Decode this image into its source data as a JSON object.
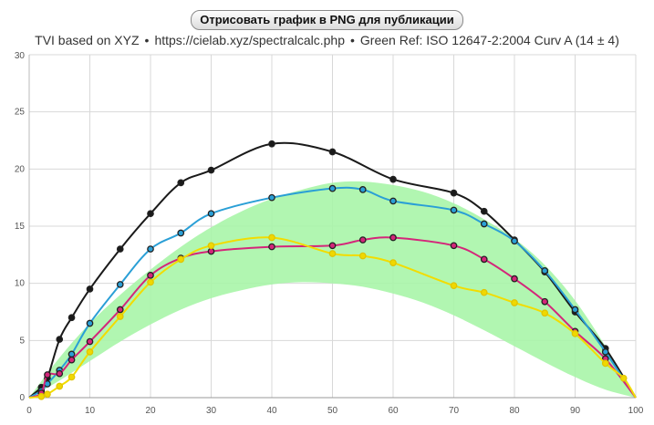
{
  "button": {
    "label": "Отрисовать график в PNG для публикации"
  },
  "subtitle": {
    "part1": "TVI based on XYZ",
    "separator": "•",
    "part2": "https://cielab.xyz/spectralcalc.php",
    "part3": "Green Ref: ISO 12647-2:2004 Curv A (14 ± 4)"
  },
  "chart_data": {
    "type": "line",
    "title": "TVI based on XYZ",
    "xlim": [
      0,
      100
    ],
    "ylim": [
      0,
      30
    ],
    "x_ticks": [
      0,
      10,
      20,
      30,
      40,
      50,
      60,
      70,
      80,
      90,
      100
    ],
    "y_ticks": [
      0,
      5,
      10,
      15,
      20,
      25,
      30
    ],
    "grid": true,
    "band": {
      "name": "Green Ref: ISO 12647-2:2004 Curv A (14 ± 4)",
      "color": "#a8f5a8",
      "x": [
        0,
        5,
        10,
        15,
        20,
        25,
        30,
        35,
        40,
        45,
        50,
        55,
        60,
        65,
        70,
        75,
        80,
        85,
        90,
        95,
        100
      ],
      "lower": [
        0,
        1.5,
        3.2,
        4.9,
        6.4,
        7.7,
        8.7,
        9.4,
        9.9,
        10.1,
        10.0,
        9.7,
        9.1,
        8.3,
        7.2,
        5.9,
        4.5,
        3.1,
        1.8,
        0.7,
        0
      ],
      "upper": [
        0,
        3.5,
        6.5,
        9.0,
        11.2,
        13.2,
        14.9,
        16.3,
        17.4,
        18.2,
        18.8,
        18.9,
        18.6,
        18.0,
        17.0,
        15.6,
        13.9,
        11.6,
        8.5,
        4.5,
        0
      ]
    },
    "series": [
      {
        "name": "black",
        "color": "#1a1a1a",
        "x": [
          0,
          2,
          3,
          5,
          7,
          10,
          15,
          20,
          25,
          30,
          40,
          50,
          60,
          70,
          75,
          80,
          85,
          90,
          95,
          100
        ],
        "y": [
          0,
          0.9,
          1.7,
          5.1,
          7.0,
          9.5,
          13.0,
          16.1,
          18.8,
          19.9,
          22.2,
          21.5,
          19.1,
          17.9,
          16.3,
          13.8,
          11.0,
          7.5,
          4.3,
          0
        ]
      },
      {
        "name": "cyan",
        "color": "#2a9fd6",
        "x": [
          0,
          2,
          3,
          5,
          7,
          10,
          15,
          20,
          25,
          30,
          40,
          50,
          55,
          60,
          70,
          75,
          80,
          85,
          90,
          95,
          100
        ],
        "y": [
          0,
          0.6,
          1.2,
          2.4,
          3.8,
          6.5,
          9.9,
          13.0,
          14.4,
          16.1,
          17.5,
          18.3,
          18.2,
          17.2,
          16.4,
          15.2,
          13.7,
          11.1,
          7.7,
          4.0,
          0
        ]
      },
      {
        "name": "magenta",
        "color": "#d4267a",
        "x": [
          0,
          2,
          3,
          5,
          7,
          10,
          15,
          20,
          25,
          30,
          40,
          50,
          55,
          60,
          70,
          75,
          80,
          85,
          90,
          95,
          100
        ],
        "y": [
          0,
          0.4,
          2.0,
          2.1,
          3.3,
          4.9,
          7.7,
          10.7,
          12.2,
          12.8,
          13.2,
          13.3,
          13.8,
          14.0,
          13.3,
          12.1,
          10.4,
          8.4,
          5.8,
          3.4,
          0
        ]
      },
      {
        "name": "yellow",
        "color": "#f0d800",
        "x": [
          0,
          2,
          3,
          5,
          7,
          10,
          15,
          20,
          25,
          30,
          40,
          50,
          55,
          60,
          70,
          75,
          80,
          85,
          90,
          95,
          98,
          100
        ],
        "y": [
          0,
          0.1,
          0.3,
          1.0,
          1.8,
          4.0,
          7.1,
          10.1,
          12.1,
          13.3,
          14.0,
          12.6,
          12.4,
          11.8,
          9.8,
          9.2,
          8.3,
          7.4,
          5.6,
          3.0,
          1.7,
          0
        ]
      }
    ]
  }
}
